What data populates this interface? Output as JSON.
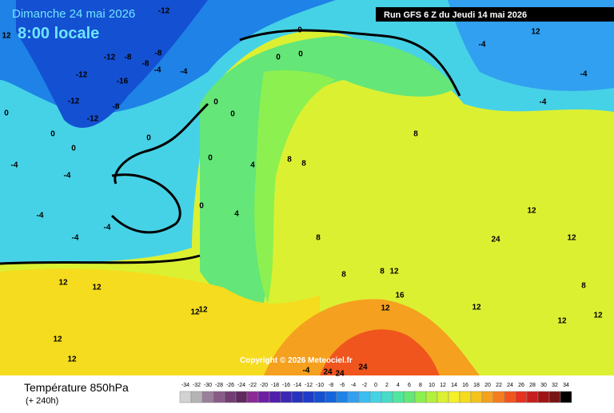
{
  "header": {
    "date": "Dimanche 24 mai 2026",
    "time": "8:00 locale",
    "run": "Run GFS 6 Z du Jeudi 14 mai 2026"
  },
  "map": {
    "copyright": "Copyright © 2026 Meteociel.fr",
    "contour_labels": [
      12,
      -12,
      0,
      0,
      0,
      -12,
      -8,
      -8,
      -8,
      -4,
      -12,
      -16,
      -12,
      -8,
      -12,
      0,
      0,
      0,
      0,
      0,
      0,
      0,
      -4,
      -4,
      -4,
      -4,
      -4,
      0,
      4,
      4,
      8,
      8,
      8,
      8,
      8,
      12,
      12,
      12,
      12,
      12,
      12,
      12,
      12,
      16,
      12,
      12,
      12,
      12,
      12,
      8,
      8,
      12,
      -4,
      -4,
      -4,
      -4,
      -4,
      24,
      24,
      24,
      24
    ]
  },
  "footer": {
    "title": "Température 850hPa",
    "lead": "(+ 240h)"
  },
  "legend": {
    "values": [
      -34,
      -32,
      -30,
      -28,
      -26,
      -24,
      -22,
      -20,
      -18,
      -16,
      -14,
      -12,
      -10,
      -8,
      -6,
      -4,
      -2,
      0,
      2,
      4,
      6,
      8,
      10,
      12,
      14,
      16,
      18,
      20,
      22,
      24,
      26,
      28,
      30,
      32,
      34
    ],
    "colors": [
      "#d2d2d2",
      "#b4b4b4",
      "#9a7f9a",
      "#875a87",
      "#733c73",
      "#5f285f",
      "#8c2896",
      "#6e1ea0",
      "#501eaa",
      "#3c28b4",
      "#2832be",
      "#1e3cc8",
      "#1450d2",
      "#1464dc",
      "#1e82e6",
      "#32a0f0",
      "#3cbef0",
      "#46d2e6",
      "#46dcc8",
      "#50e6a0",
      "#64e678",
      "#8cf050",
      "#b4f03c",
      "#dcf032",
      "#f5f028",
      "#f5dc1e",
      "#f5c31e",
      "#f5a01e",
      "#f57d1e",
      "#f0551e",
      "#e6321e",
      "#c81e1e",
      "#a01414",
      "#781414",
      "#000000"
    ]
  }
}
